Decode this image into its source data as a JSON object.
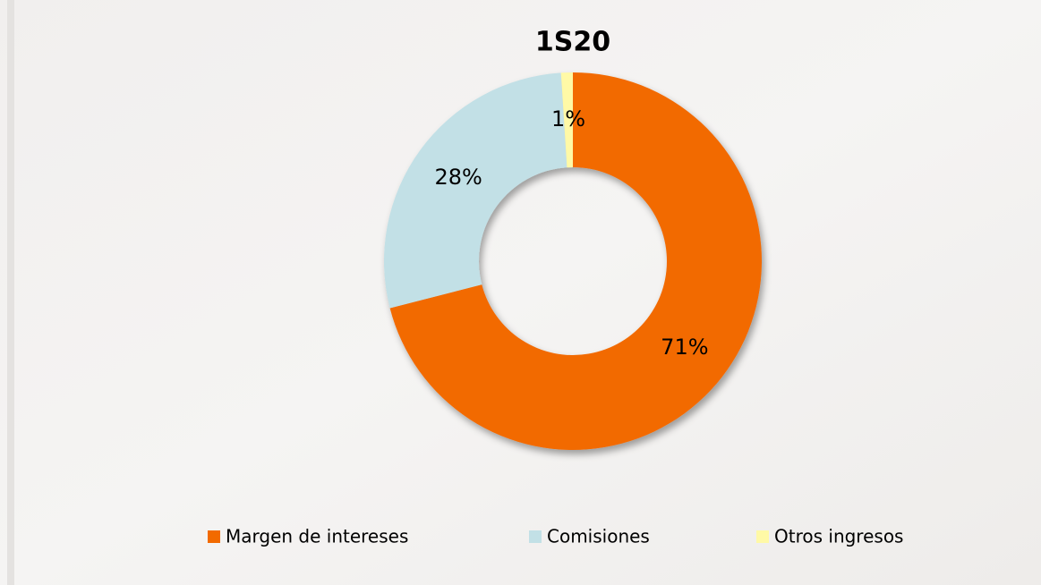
{
  "chart_data": {
    "type": "pie",
    "title": "1S20",
    "categories": [
      "Margen de intereses",
      "Comisiones",
      "Otros ingresos"
    ],
    "values": [
      71,
      28,
      1
    ],
    "value_labels": [
      "71%",
      "28%",
      "1%"
    ],
    "colors": [
      "#f26a00",
      "#c2e0e6",
      "#fff9a6"
    ],
    "donut": true
  }
}
